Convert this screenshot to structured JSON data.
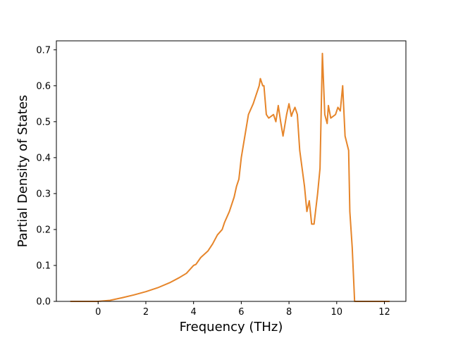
{
  "chart_data": {
    "type": "line",
    "title": "",
    "xlabel": "Frequency (THz)",
    "ylabel": "Partial Density of States",
    "xlim": [
      -1.75,
      12.9
    ],
    "ylim": [
      0.0,
      0.725
    ],
    "xticks": [
      0,
      2,
      4,
      6,
      8,
      10,
      12
    ],
    "xtick_labels": [
      "0",
      "2",
      "4",
      "6",
      "8",
      "10",
      "12"
    ],
    "yticks": [
      0.0,
      0.1,
      0.2,
      0.3,
      0.4,
      0.5,
      0.6,
      0.7
    ],
    "ytick_labels": [
      "0.0",
      "0.1",
      "0.2",
      "0.3",
      "0.4",
      "0.5",
      "0.6",
      "0.7"
    ],
    "grid": false,
    "legend": "none",
    "series": [
      {
        "color": "#e6852a",
        "x": [
          -1.15,
          -0.5,
          0.0,
          0.5,
          1.0,
          1.5,
          2.0,
          2.5,
          3.0,
          3.4,
          3.7,
          4.0,
          4.1,
          4.3,
          4.6,
          4.8,
          5.0,
          5.2,
          5.3,
          5.5,
          5.7,
          5.8,
          5.9,
          6.0,
          6.1,
          6.2,
          6.3,
          6.5,
          6.6,
          6.7,
          6.75,
          6.8,
          6.9,
          6.95,
          7.05,
          7.15,
          7.25,
          7.35,
          7.45,
          7.55,
          7.65,
          7.75,
          7.9,
          8.0,
          8.1,
          8.15,
          8.25,
          8.35,
          8.45,
          8.55,
          8.65,
          8.75,
          8.85,
          8.95,
          9.05,
          9.2,
          9.3,
          9.4,
          9.5,
          9.6,
          9.65,
          9.75,
          9.85,
          9.95,
          10.05,
          10.15,
          10.25,
          10.35,
          10.5,
          10.55,
          10.65,
          10.75,
          10.85,
          10.95,
          11.1,
          11.5,
          12.2
        ],
        "y": [
          0.0,
          0.0,
          0.0,
          0.003,
          0.01,
          0.018,
          0.027,
          0.038,
          0.052,
          0.066,
          0.078,
          0.1,
          0.103,
          0.122,
          0.14,
          0.16,
          0.185,
          0.2,
          0.22,
          0.25,
          0.29,
          0.32,
          0.34,
          0.4,
          0.44,
          0.48,
          0.52,
          0.55,
          0.57,
          0.59,
          0.6,
          0.62,
          0.6,
          0.6,
          0.52,
          0.51,
          0.515,
          0.52,
          0.5,
          0.545,
          0.5,
          0.46,
          0.52,
          0.55,
          0.515,
          0.525,
          0.54,
          0.52,
          0.42,
          0.37,
          0.32,
          0.25,
          0.28,
          0.215,
          0.215,
          0.3,
          0.37,
          0.69,
          0.52,
          0.495,
          0.545,
          0.51,
          0.515,
          0.52,
          0.54,
          0.53,
          0.6,
          0.46,
          0.42,
          0.25,
          0.15,
          0.0,
          0.0,
          0.0,
          0.0,
          0.0,
          0.0
        ]
      }
    ]
  }
}
